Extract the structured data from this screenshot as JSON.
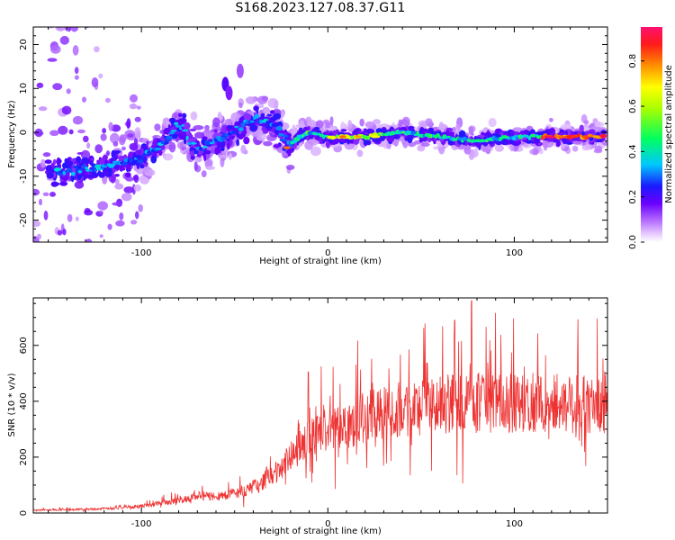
{
  "title": "S168.2023.127.08.37.G11",
  "chart_data": [
    {
      "type": "heatmap",
      "xlabel": "Height of straight line (km)",
      "ylabel": "Frequency (Hz)",
      "xlim": [
        -158,
        150
      ],
      "ylim": [
        -25,
        24
      ],
      "xticks": [
        -100,
        0,
        100
      ],
      "yticks": [
        -20,
        -10,
        0,
        10,
        20
      ],
      "colorbar": {
        "label": "Normalized spectral amplitude",
        "range": [
          0,
          0.95
        ],
        "ticks": [
          0.0,
          0.2,
          0.4,
          0.6,
          0.8
        ]
      },
      "ridge": {
        "description_points_x": [
          -158,
          -140,
          -120,
          -100,
          -90,
          -80,
          -70,
          -60,
          -50,
          -40,
          -30,
          -25,
          -20,
          -15,
          -10,
          0,
          20,
          40,
          60,
          80,
          100,
          120,
          148
        ],
        "description_points_y": [
          -9,
          -9,
          -8,
          -6,
          -3,
          2,
          -4,
          -2,
          0,
          3,
          2,
          0,
          -3,
          -1,
          0,
          -1,
          -1,
          0,
          -1,
          -2,
          -1,
          -1,
          -1
        ]
      }
    },
    {
      "type": "line",
      "xlabel": "Height of straight line (km)",
      "ylabel": "SNR (10 * v/v)",
      "xlim": [
        -158,
        150
      ],
      "ylim": [
        0,
        770
      ],
      "xticks": [
        -100,
        0,
        100
      ],
      "yticks": [
        0,
        200,
        400,
        600
      ],
      "color": "#ee3333",
      "envelope_x": [
        -158,
        -140,
        -120,
        -110,
        -100,
        -90,
        -80,
        -70,
        -60,
        -50,
        -40,
        -30,
        -25,
        -20,
        -15,
        -10,
        0,
        10,
        20,
        30,
        40,
        50,
        60,
        70,
        80,
        90,
        100,
        110,
        120,
        130,
        140,
        150
      ],
      "envelope_y": [
        10,
        12,
        15,
        20,
        25,
        35,
        45,
        60,
        60,
        70,
        90,
        130,
        160,
        200,
        230,
        270,
        300,
        320,
        340,
        360,
        370,
        380,
        385,
        390,
        395,
        395,
        390,
        390,
        395,
        390,
        385,
        390
      ]
    }
  ]
}
